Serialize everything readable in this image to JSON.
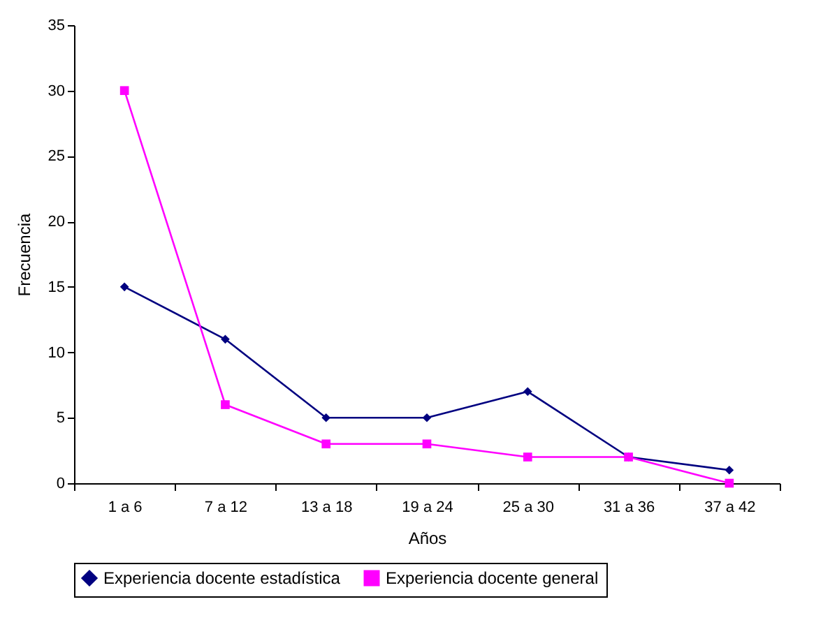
{
  "chart_data": {
    "type": "line",
    "xlabel": "Años",
    "ylabel": "Frecuencia",
    "categories": [
      "1 a 6",
      "7 a 12",
      "13 a 18",
      "19 a 24",
      "25 a 30",
      "31 a 36",
      "37 a 42"
    ],
    "series": [
      {
        "name": "Experiencia docente estadística",
        "color": "#000080",
        "marker": "diamond",
        "values": [
          15,
          11,
          5,
          5,
          7,
          2,
          1
        ]
      },
      {
        "name": "Experiencia docente general",
        "color": "#ff00ff",
        "marker": "square",
        "values": [
          30,
          6,
          3,
          3,
          2,
          2,
          0
        ]
      }
    ],
    "ylim": [
      0,
      35
    ],
    "yticks": [
      0,
      5,
      10,
      15,
      20,
      25,
      30,
      35
    ],
    "grid": false,
    "legend": "bottom",
    "line_style": "solid"
  }
}
